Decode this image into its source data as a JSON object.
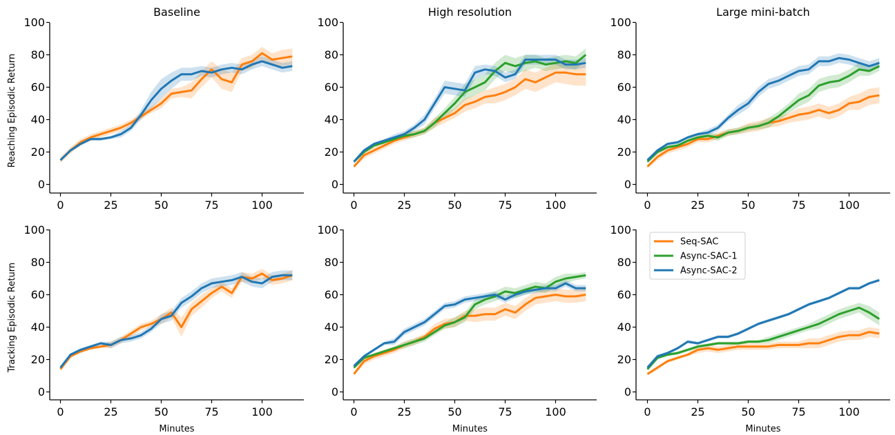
{
  "chart_data": [
    {
      "type": "line",
      "title": "Baseline",
      "xlabel": "",
      "ylabel": "Reaching Episodic Return",
      "xlim": [
        -5,
        120
      ],
      "ylim": [
        -5,
        100
      ],
      "xticks": [
        0,
        25,
        50,
        75,
        100
      ],
      "yticks": [
        0,
        20,
        40,
        60,
        80,
        100
      ],
      "x": [
        0,
        5,
        10,
        15,
        20,
        25,
        30,
        35,
        40,
        45,
        50,
        55,
        60,
        65,
        70,
        75,
        80,
        85,
        90,
        95,
        100,
        105,
        110,
        115
      ],
      "series": [
        {
          "name": "Seq-SAC",
          "color": "#ff7f0e",
          "values": [
            15,
            21,
            26,
            29,
            31,
            33,
            35,
            38,
            42,
            46,
            50,
            56,
            57,
            58,
            65,
            71,
            65,
            63,
            74,
            76,
            81,
            77,
            78,
            79
          ],
          "band": [
            2,
            2,
            2,
            2,
            2,
            2,
            2,
            2,
            2,
            2,
            3,
            3,
            3,
            5,
            5,
            5,
            6,
            6,
            4,
            4,
            4,
            4,
            5,
            5
          ]
        },
        {
          "name": "Async-SAC-2",
          "color": "#1f77b4",
          "values": [
            15,
            21,
            25,
            28,
            28,
            29,
            31,
            35,
            43,
            52,
            59,
            64,
            68,
            68,
            70,
            69,
            71,
            72,
            71,
            74,
            76,
            74,
            72,
            73
          ],
          "band": [
            1,
            1,
            1,
            1,
            1,
            1,
            2,
            2,
            3,
            5,
            6,
            5,
            4,
            4,
            3,
            3,
            3,
            3,
            3,
            3,
            3,
            3,
            3,
            3
          ]
        }
      ]
    },
    {
      "type": "line",
      "title": "High resolution",
      "xlabel": "",
      "ylabel": "",
      "xlim": [
        -5,
        120
      ],
      "ylim": [
        -5,
        100
      ],
      "xticks": [
        0,
        25,
        50,
        75,
        100
      ],
      "yticks": [
        0,
        20,
        40,
        60,
        80,
        100
      ],
      "x": [
        0,
        5,
        10,
        15,
        20,
        25,
        30,
        35,
        40,
        45,
        50,
        55,
        60,
        65,
        70,
        75,
        80,
        85,
        90,
        95,
        100,
        105,
        110,
        115
      ],
      "series": [
        {
          "name": "Seq-SAC",
          "color": "#ff7f0e",
          "values": [
            11,
            18,
            21,
            24,
            27,
            29,
            31,
            33,
            38,
            41,
            44,
            49,
            51,
            54,
            55,
            57,
            60,
            65,
            63,
            66,
            69,
            69,
            68,
            68
          ],
          "band": [
            1,
            2,
            2,
            2,
            2,
            2,
            2,
            2,
            3,
            3,
            3,
            4,
            4,
            4,
            5,
            5,
            5,
            6,
            6,
            6,
            6,
            7,
            7,
            7
          ]
        },
        {
          "name": "Async-SAC-1",
          "color": "#2ca02c",
          "values": [
            14,
            20,
            24,
            26,
            28,
            30,
            31,
            33,
            38,
            44,
            50,
            57,
            60,
            63,
            70,
            75,
            73,
            75,
            76,
            74,
            75,
            76,
            75,
            80
          ],
          "band": [
            1,
            1,
            1,
            1,
            1,
            2,
            2,
            2,
            3,
            3,
            4,
            5,
            5,
            5,
            5,
            5,
            5,
            5,
            4,
            4,
            4,
            4,
            4,
            4
          ]
        },
        {
          "name": "Async-SAC-2",
          "color": "#1f77b4",
          "values": [
            14,
            21,
            25,
            27,
            29,
            31,
            35,
            40,
            50,
            60,
            59,
            58,
            69,
            71,
            70,
            66,
            68,
            77,
            77,
            77,
            77,
            74,
            74,
            75
          ],
          "band": [
            1,
            1,
            1,
            1,
            2,
            2,
            2,
            3,
            3,
            4,
            4,
            4,
            4,
            3,
            3,
            3,
            3,
            3,
            3,
            3,
            3,
            3,
            3,
            3
          ]
        }
      ]
    },
    {
      "type": "line",
      "title": "Large mini-batch",
      "xlabel": "",
      "ylabel": "",
      "xlim": [
        -5,
        120
      ],
      "ylim": [
        -5,
        100
      ],
      "xticks": [
        0,
        25,
        50,
        75,
        100
      ],
      "yticks": [
        0,
        20,
        40,
        60,
        80,
        100
      ],
      "x": [
        0,
        5,
        10,
        15,
        20,
        25,
        30,
        35,
        40,
        45,
        50,
        55,
        60,
        65,
        70,
        75,
        80,
        85,
        90,
        95,
        100,
        105,
        110,
        115
      ],
      "series": [
        {
          "name": "Seq-SAC",
          "color": "#ff7f0e",
          "values": [
            11,
            17,
            21,
            23,
            25,
            28,
            28,
            30,
            32,
            33,
            35,
            36,
            38,
            39,
            41,
            43,
            44,
            46,
            44,
            46,
            50,
            51,
            54,
            55
          ],
          "band": [
            1,
            2,
            2,
            2,
            2,
            2,
            2,
            2,
            2,
            2,
            3,
            3,
            3,
            3,
            3,
            4,
            4,
            4,
            4,
            4,
            4,
            5,
            5,
            5
          ]
        },
        {
          "name": "Async-SAC-1",
          "color": "#2ca02c",
          "values": [
            14,
            20,
            23,
            24,
            27,
            29,
            30,
            29,
            32,
            33,
            35,
            36,
            38,
            42,
            47,
            52,
            55,
            61,
            63,
            64,
            67,
            71,
            70,
            73
          ],
          "band": [
            1,
            1,
            1,
            1,
            1,
            2,
            2,
            2,
            2,
            2,
            2,
            2,
            3,
            3,
            3,
            4,
            4,
            4,
            4,
            4,
            4,
            4,
            3,
            3
          ]
        },
        {
          "name": "Async-SAC-2",
          "color": "#1f77b4",
          "values": [
            15,
            21,
            25,
            26,
            29,
            31,
            32,
            35,
            41,
            46,
            50,
            57,
            62,
            64,
            67,
            70,
            71,
            76,
            76,
            78,
            77,
            75,
            73,
            75
          ],
          "band": [
            1,
            1,
            1,
            1,
            1,
            1,
            2,
            2,
            2,
            3,
            3,
            3,
            3,
            3,
            3,
            3,
            3,
            3,
            3,
            3,
            3,
            3,
            3,
            3
          ]
        }
      ]
    },
    {
      "type": "line",
      "title": "",
      "xlabel": "Minutes",
      "ylabel": "Tracking Episodic Return",
      "xlim": [
        -5,
        120
      ],
      "ylim": [
        -5,
        100
      ],
      "xticks": [
        0,
        25,
        50,
        75,
        100
      ],
      "yticks": [
        0,
        20,
        40,
        60,
        80,
        100
      ],
      "x": [
        0,
        5,
        10,
        15,
        20,
        25,
        30,
        35,
        40,
        45,
        50,
        55,
        60,
        65,
        70,
        75,
        80,
        85,
        90,
        95,
        100,
        105,
        110,
        115
      ],
      "series": [
        {
          "name": "Seq-SAC",
          "color": "#ff7f0e",
          "values": [
            14,
            22,
            25,
            27,
            28,
            29,
            32,
            36,
            40,
            42,
            45,
            49,
            40,
            51,
            56,
            61,
            65,
            61,
            71,
            70,
            73,
            69,
            70,
            72
          ],
          "band": [
            1,
            1,
            1,
            1,
            1,
            2,
            2,
            2,
            2,
            2,
            3,
            3,
            6,
            4,
            4,
            3,
            3,
            3,
            3,
            3,
            3,
            3,
            3,
            3
          ]
        },
        {
          "name": "Async-SAC-2",
          "color": "#1f77b4",
          "values": [
            15,
            23,
            26,
            28,
            30,
            29,
            32,
            33,
            35,
            39,
            45,
            47,
            55,
            59,
            64,
            67,
            68,
            69,
            71,
            68,
            67,
            71,
            72,
            72
          ],
          "band": [
            1,
            1,
            1,
            1,
            1,
            2,
            2,
            2,
            2,
            2,
            3,
            3,
            3,
            3,
            3,
            3,
            3,
            3,
            3,
            3,
            3,
            3,
            3,
            3
          ]
        }
      ]
    },
    {
      "type": "line",
      "title": "",
      "xlabel": "Minutes",
      "ylabel": "",
      "xlim": [
        -5,
        120
      ],
      "ylim": [
        -5,
        100
      ],
      "xticks": [
        0,
        25,
        50,
        75,
        100
      ],
      "yticks": [
        0,
        20,
        40,
        60,
        80,
        100
      ],
      "x": [
        0,
        5,
        10,
        15,
        20,
        25,
        30,
        35,
        40,
        45,
        50,
        55,
        60,
        65,
        70,
        75,
        80,
        85,
        90,
        95,
        100,
        105,
        110,
        115
      ],
      "series": [
        {
          "name": "Seq-SAC",
          "color": "#ff7f0e",
          "values": [
            11,
            19,
            22,
            24,
            26,
            29,
            31,
            34,
            39,
            42,
            43,
            47,
            47,
            48,
            48,
            51,
            49,
            54,
            58,
            59,
            60,
            59,
            59,
            60
          ],
          "band": [
            1,
            2,
            2,
            2,
            2,
            2,
            2,
            2,
            3,
            3,
            3,
            3,
            4,
            4,
            4,
            4,
            4,
            4,
            4,
            4,
            4,
            4,
            4,
            4
          ]
        },
        {
          "name": "Async-SAC-1",
          "color": "#2ca02c",
          "values": [
            15,
            21,
            23,
            25,
            27,
            29,
            31,
            33,
            37,
            41,
            43,
            46,
            54,
            57,
            59,
            62,
            61,
            63,
            65,
            64,
            68,
            70,
            71,
            72
          ],
          "band": [
            1,
            1,
            1,
            1,
            1,
            2,
            2,
            2,
            2,
            2,
            3,
            3,
            3,
            3,
            3,
            3,
            3,
            3,
            3,
            3,
            3,
            3,
            2,
            2
          ]
        },
        {
          "name": "Async-SAC-2",
          "color": "#1f77b4",
          "values": [
            16,
            22,
            26,
            30,
            31,
            37,
            40,
            43,
            48,
            53,
            54,
            57,
            58,
            59,
            60,
            57,
            60,
            62,
            63,
            64,
            64,
            67,
            64,
            64
          ],
          "band": [
            1,
            1,
            1,
            1,
            2,
            2,
            2,
            2,
            2,
            2,
            2,
            2,
            2,
            2,
            2,
            2,
            2,
            2,
            2,
            2,
            2,
            2,
            2,
            2
          ]
        }
      ]
    },
    {
      "type": "line",
      "title": "",
      "xlabel": "Minutes",
      "ylabel": "",
      "xlim": [
        -5,
        120
      ],
      "ylim": [
        -5,
        100
      ],
      "xticks": [
        0,
        25,
        50,
        75,
        100
      ],
      "yticks": [
        0,
        20,
        40,
        60,
        80,
        100
      ],
      "legend": {
        "position": "upper-left",
        "entries": [
          "Seq-SAC",
          "Async-SAC-1",
          "Async-SAC-2"
        ]
      },
      "x": [
        0,
        5,
        10,
        15,
        20,
        25,
        30,
        35,
        40,
        45,
        50,
        55,
        60,
        65,
        70,
        75,
        80,
        85,
        90,
        95,
        100,
        105,
        110,
        115
      ],
      "series": [
        {
          "name": "Seq-SAC",
          "color": "#ff7f0e",
          "values": [
            11,
            15,
            19,
            21,
            23,
            26,
            27,
            26,
            27,
            28,
            28,
            28,
            28,
            29,
            29,
            29,
            30,
            30,
            32,
            34,
            35,
            35,
            37,
            36
          ],
          "band": [
            1,
            1,
            1,
            1,
            1,
            2,
            2,
            2,
            2,
            2,
            2,
            2,
            2,
            2,
            2,
            2,
            3,
            3,
            3,
            3,
            3,
            3,
            3,
            3
          ]
        },
        {
          "name": "Async-SAC-1",
          "color": "#2ca02c",
          "values": [
            14,
            21,
            23,
            24,
            26,
            28,
            29,
            30,
            30,
            30,
            31,
            31,
            32,
            34,
            36,
            38,
            40,
            42,
            45,
            48,
            50,
            52,
            49,
            45
          ],
          "band": [
            1,
            1,
            1,
            1,
            1,
            1,
            1,
            1,
            1,
            1,
            1,
            1,
            2,
            2,
            2,
            2,
            2,
            3,
            3,
            3,
            3,
            3,
            4,
            4
          ]
        },
        {
          "name": "Async-SAC-2",
          "color": "#1f77b4",
          "values": [
            15,
            22,
            24,
            27,
            31,
            30,
            32,
            34,
            34,
            36,
            39,
            42,
            44,
            46,
            48,
            51,
            54,
            56,
            58,
            61,
            64,
            64,
            67,
            69
          ],
          "band": [
            1,
            1,
            1,
            1,
            1,
            1,
            1,
            1,
            1,
            1,
            1,
            1,
            1,
            1,
            1,
            1,
            1,
            1,
            1,
            1,
            1,
            1,
            1,
            1
          ]
        }
      ]
    }
  ]
}
